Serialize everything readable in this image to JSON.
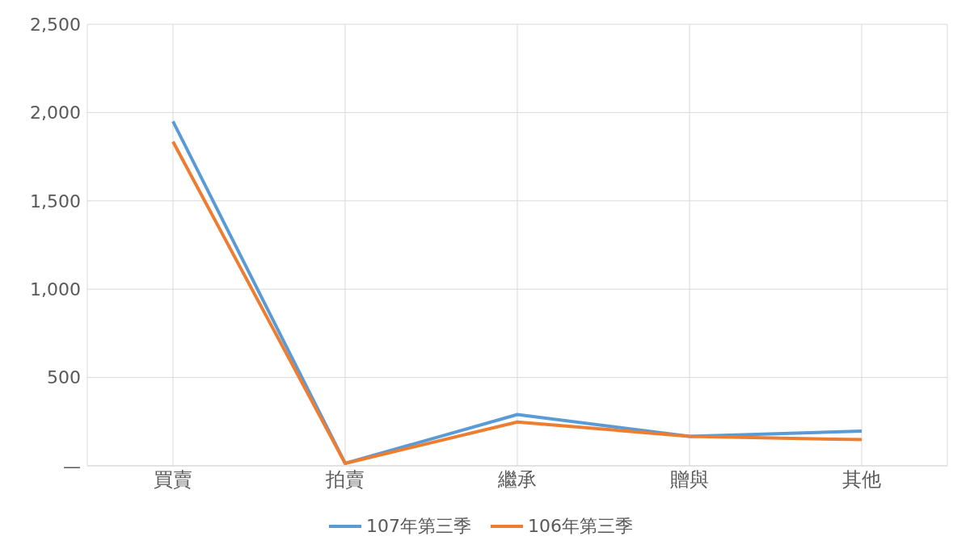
{
  "chart_data": {
    "type": "line",
    "categories": [
      "買賣",
      "拍賣",
      "繼承",
      "贈與",
      "其他"
    ],
    "series": [
      {
        "name": "107年第三季",
        "color": "#5b9bd5",
        "values": [
          1950,
          14,
          290,
          167,
          196
        ]
      },
      {
        "name": "106年第三季",
        "color": "#ed7d31",
        "values": [
          1835,
          14,
          248,
          167,
          148
        ]
      }
    ],
    "ylim": [
      0,
      2500
    ],
    "yticks": [
      {
        "value": 0,
        "label": "—"
      },
      {
        "value": 500,
        "label": "500"
      },
      {
        "value": 1000,
        "label": "1,000"
      },
      {
        "value": 1500,
        "label": "1,500"
      },
      {
        "value": 2000,
        "label": "2,000"
      },
      {
        "value": 2500,
        "label": "2,500"
      }
    ],
    "grid": true,
    "legend": "bottom",
    "marker": "none",
    "line_style": "solid"
  }
}
